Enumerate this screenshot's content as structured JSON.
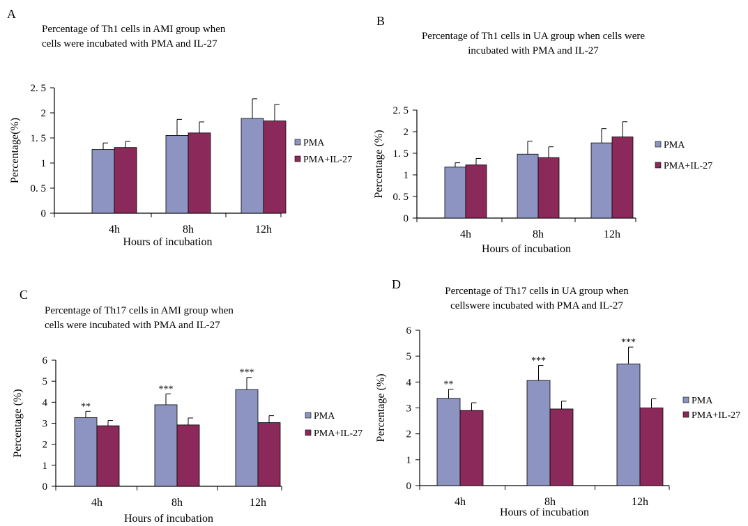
{
  "colors": {
    "pma": "#8e94c2",
    "pma_il27": "#8b2a5a",
    "axis": "#000000"
  },
  "chart_data": [
    {
      "panel": "A",
      "type": "bar",
      "title": [
        "Percentage of Th1 cells in AMI group when",
        "cells were incubated with PMA and IL-27"
      ],
      "xlabel": "Hours of incubation",
      "ylabel": "Percentage(%)",
      "categories": [
        "4h",
        "8h",
        "12h"
      ],
      "ylim": [
        0,
        2.5
      ],
      "yticks": [
        "0",
        "0.5",
        "1",
        "1.5",
        "2",
        "2.5"
      ],
      "ytick_labels": [
        "0",
        "0. 5",
        "1",
        "1. 5",
        "2",
        "2. 5"
      ],
      "legend": "right",
      "series": [
        {
          "name": "PMA",
          "values": [
            1.27,
            1.55,
            1.89
          ],
          "errors": [
            0.13,
            0.32,
            0.39
          ],
          "stars": [
            "",
            "",
            ""
          ]
        },
        {
          "name": "PMA+IL-27",
          "values": [
            1.31,
            1.6,
            1.84
          ],
          "errors": [
            0.12,
            0.22,
            0.33
          ],
          "stars": [
            "",
            "",
            ""
          ]
        }
      ]
    },
    {
      "panel": "B",
      "type": "bar",
      "title": [
        "Percentage of Th1 cells in UA group when cells were",
        "incubated with PMA and IL-27"
      ],
      "xlabel": "Hours of incubation",
      "ylabel": "Percentage (%)",
      "categories": [
        "4h",
        "8h",
        "12h"
      ],
      "ylim": [
        0,
        2.5
      ],
      "yticks": [
        "0",
        "0.5",
        "1",
        "1.5",
        "2",
        "2.5"
      ],
      "ytick_labels": [
        "0",
        "0. 5",
        "1",
        "1. 5",
        "2",
        "2. 5"
      ],
      "legend": "right",
      "series": [
        {
          "name": "PMA",
          "values": [
            1.18,
            1.48,
            1.74
          ],
          "errors": [
            0.1,
            0.3,
            0.33
          ],
          "stars": [
            "",
            "",
            ""
          ]
        },
        {
          "name": "PMA+IL-27",
          "values": [
            1.23,
            1.4,
            1.88
          ],
          "errors": [
            0.15,
            0.25,
            0.35
          ],
          "stars": [
            "",
            "",
            ""
          ]
        }
      ]
    },
    {
      "panel": "C",
      "type": "bar",
      "title": [
        "Percentage of Th17 cells in AMI group when",
        "cells were incubated with PMA and IL-27"
      ],
      "xlabel": "Hours of incubation",
      "ylabel": "Percentage (%)",
      "categories": [
        "4h",
        "8h",
        "12h"
      ],
      "ylim": [
        0,
        6
      ],
      "yticks": [
        "0",
        "1",
        "2",
        "3",
        "4",
        "5",
        "6"
      ],
      "ytick_labels": [
        "0",
        "1",
        "2",
        "3",
        "4",
        "5",
        "6"
      ],
      "legend": "right",
      "series": [
        {
          "name": "PMA",
          "values": [
            3.27,
            3.88,
            4.6
          ],
          "errors": [
            0.3,
            0.52,
            0.58
          ],
          "stars": [
            "**",
            "***",
            "***"
          ]
        },
        {
          "name": "PMA+IL-27",
          "values": [
            2.88,
            2.92,
            3.03
          ],
          "errors": [
            0.25,
            0.33,
            0.33
          ],
          "stars": [
            "",
            "",
            ""
          ]
        }
      ]
    },
    {
      "panel": "D",
      "type": "bar",
      "title": [
        "Percentage of Th17 cells in UA group when",
        "cellswere incubated with PMA and IL-27"
      ],
      "xlabel": "Hours of incubation",
      "ylabel": "Percentage (%)",
      "categories": [
        "4h",
        "8h",
        "12h"
      ],
      "ylim": [
        0,
        6
      ],
      "yticks": [
        "0",
        "1",
        "2",
        "3",
        "4",
        "5",
        "6"
      ],
      "ytick_labels": [
        "0",
        "1",
        "2",
        "3",
        "4",
        "5",
        "6"
      ],
      "legend": "right",
      "series": [
        {
          "name": "PMA",
          "values": [
            3.37,
            4.06,
            4.7
          ],
          "errors": [
            0.35,
            0.58,
            0.65
          ],
          "stars": [
            "**",
            "***",
            "***"
          ]
        },
        {
          "name": "PMA+IL-27",
          "values": [
            2.9,
            2.96,
            3.0
          ],
          "errors": [
            0.3,
            0.3,
            0.35
          ],
          "stars": [
            "",
            "",
            ""
          ]
        }
      ]
    }
  ]
}
